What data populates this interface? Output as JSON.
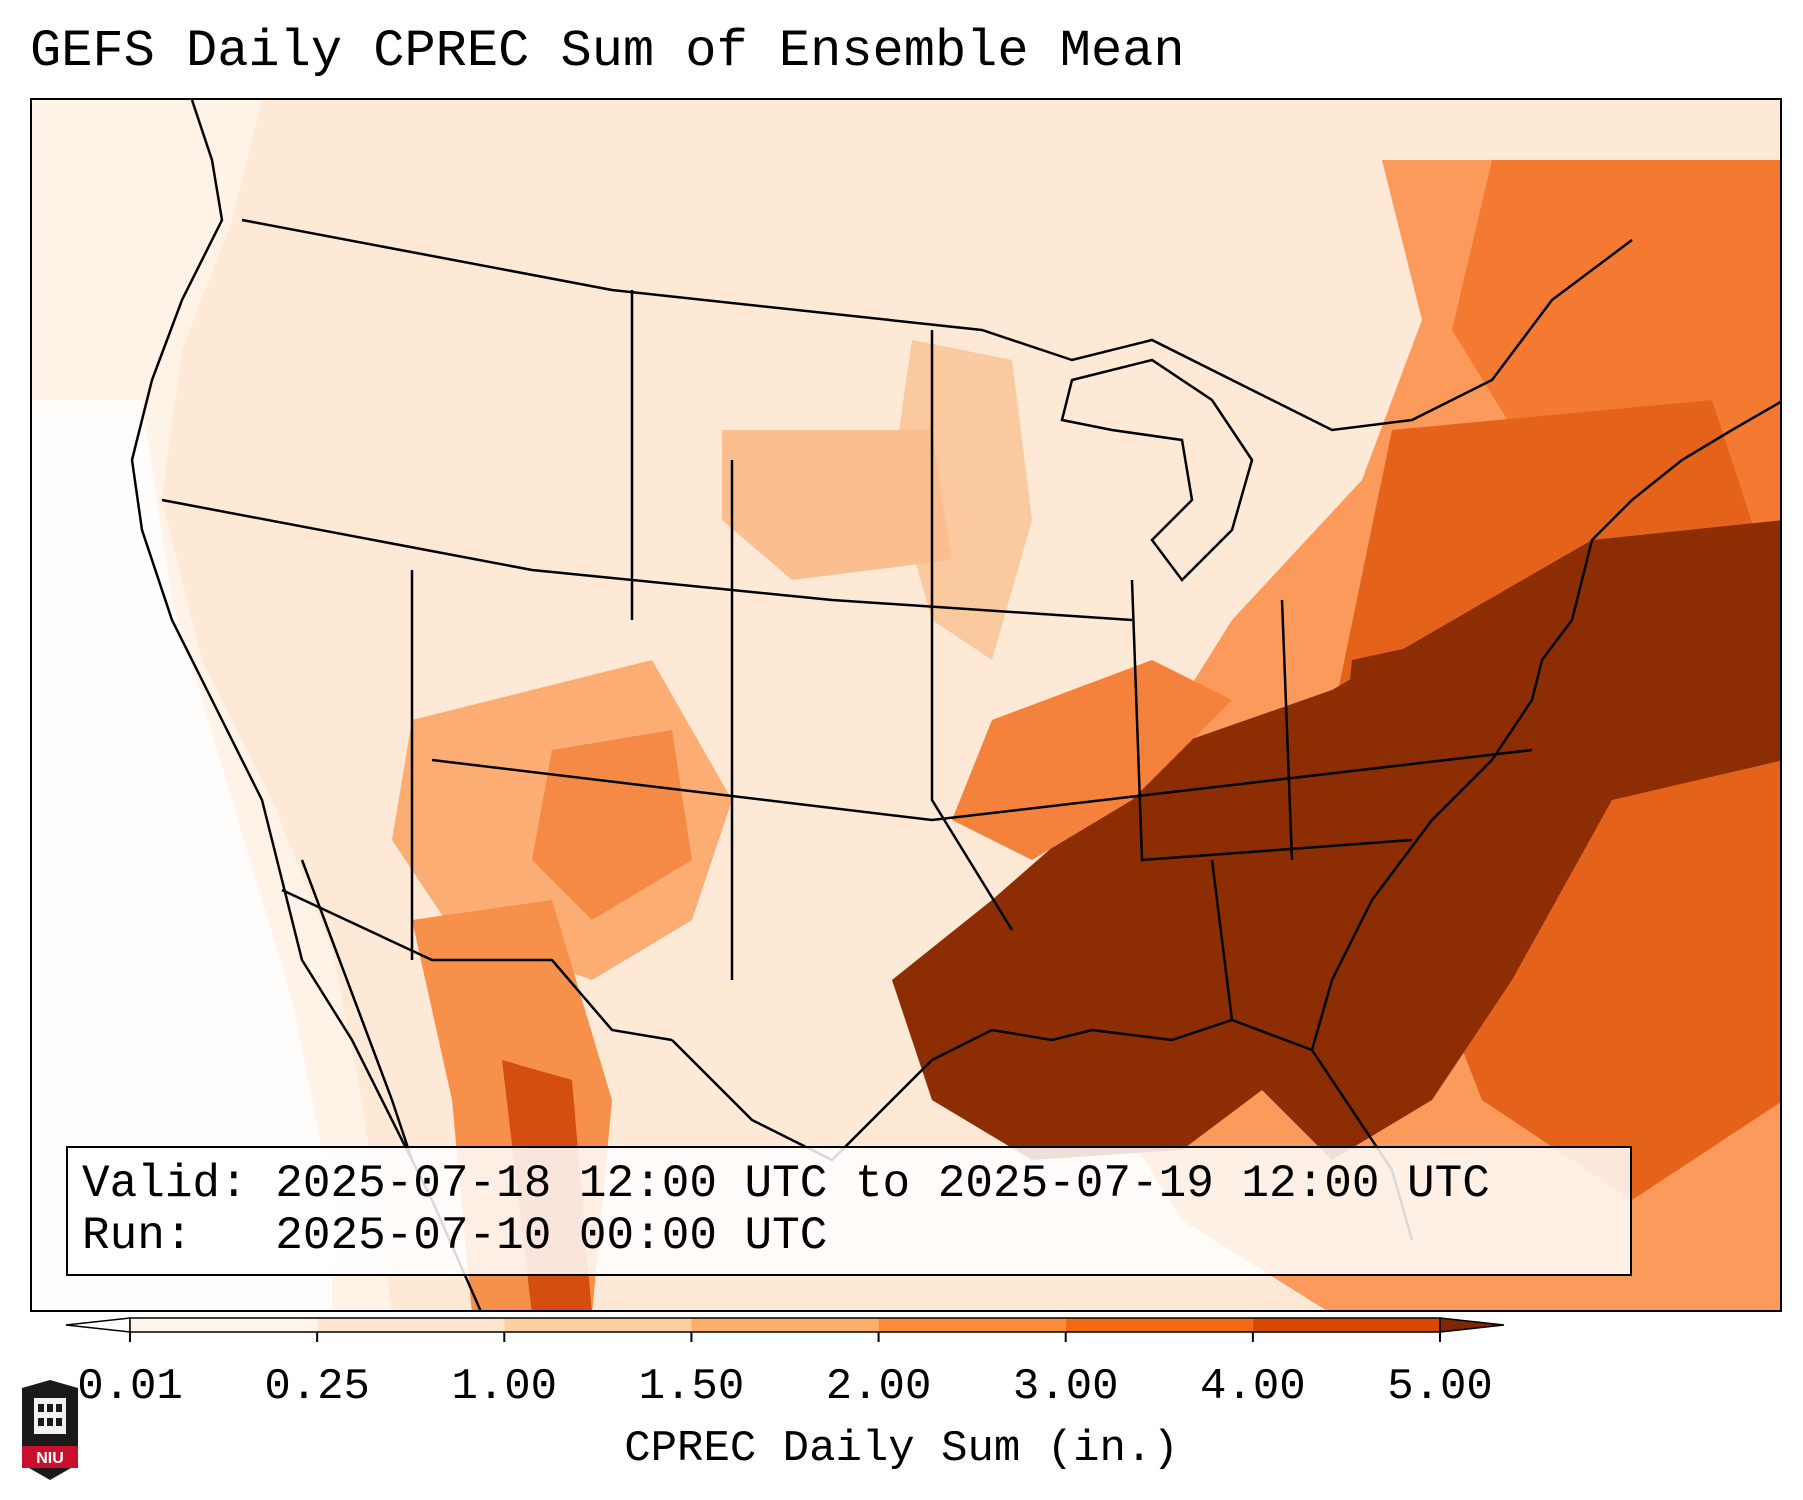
{
  "title": "GEFS Daily CPREC Sum of Ensemble Mean",
  "info": {
    "valid_label": "Valid:",
    "valid_value": "2025-07-18 12:00 UTC to 2025-07-19 12:00 UTC",
    "run_label": "Run:",
    "run_value": "2025-07-10 00:00 UTC"
  },
  "colorbar": {
    "label": "CPREC Daily Sum (in.)",
    "ticks": [
      "0.01",
      "0.25",
      "1.00",
      "1.50",
      "2.00",
      "3.00",
      "4.00",
      "5.00"
    ],
    "colors": [
      "#fff5eb",
      "#fee6ce",
      "#fdd0a2",
      "#fdae6b",
      "#fd8d3c",
      "#f16913",
      "#d94801",
      "#8c2d04"
    ],
    "under_color": "#ffffff",
    "over_color": "#7f2704"
  },
  "logo": {
    "text": "NIU",
    "color": "#c8102e"
  }
}
